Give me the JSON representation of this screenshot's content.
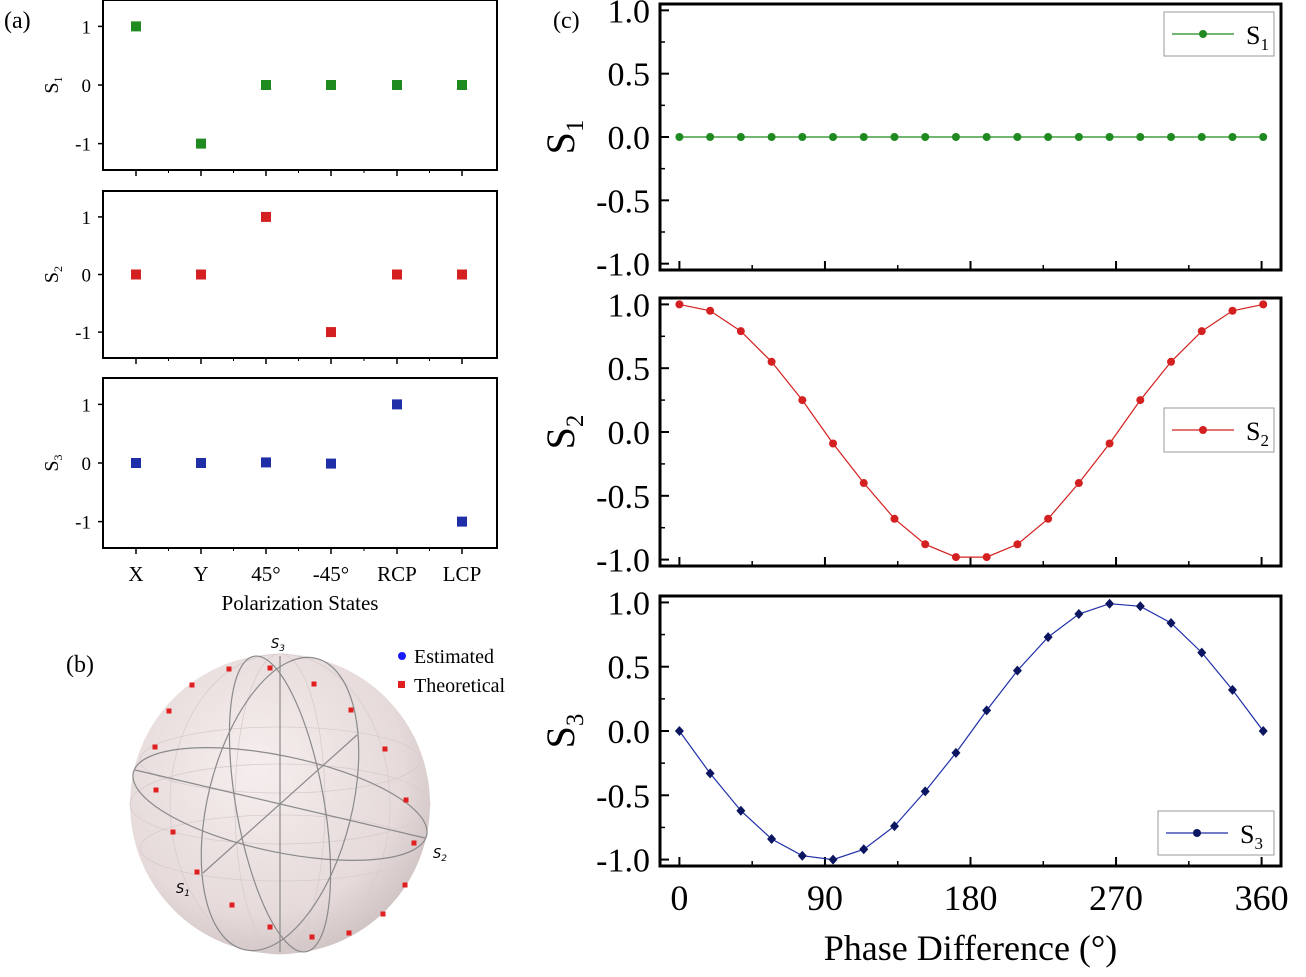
{
  "panel_labels": {
    "a": "(a)",
    "b": "(b)",
    "c": "(c)"
  },
  "colors": {
    "green": "#1f8a1f",
    "red": "#d42020",
    "blue": "#1f2fa8",
    "navy": "#0b1560"
  },
  "chart_data": [
    {
      "id": "a1",
      "type": "scatter",
      "categories": [
        "X",
        "Y",
        "45°",
        "-45°",
        "RCP",
        "LCP"
      ],
      "values": [
        1,
        -1,
        0,
        0,
        0,
        0
      ],
      "ylabel": "S",
      "ylabel_sub": "1",
      "ylim": [
        -1.45,
        1.45
      ],
      "yticks": [
        1,
        0,
        -1
      ],
      "ytick_labels": [
        "1",
        "0",
        "-1"
      ],
      "color": "#1f8a1f",
      "marker": "square"
    },
    {
      "id": "a2",
      "type": "scatter",
      "categories": [
        "X",
        "Y",
        "45°",
        "-45°",
        "RCP",
        "LCP"
      ],
      "values": [
        0,
        0,
        1,
        -1,
        0,
        0
      ],
      "ylabel": "S",
      "ylabel_sub": "2",
      "ylim": [
        -1.45,
        1.45
      ],
      "yticks": [
        1,
        0,
        -1
      ],
      "ytick_labels": [
        "1",
        "0",
        "-1"
      ],
      "color": "#d42020",
      "marker": "square"
    },
    {
      "id": "a3",
      "type": "scatter",
      "categories": [
        "X",
        "Y",
        "45°",
        "-45°",
        "RCP",
        "LCP"
      ],
      "values": [
        0,
        0,
        0.01,
        -0.01,
        1,
        -1
      ],
      "ylabel": "S",
      "ylabel_sub": "3",
      "xlabel": "Polarization States",
      "ylim": [
        -1.45,
        1.45
      ],
      "yticks": [
        1,
        0,
        -1
      ],
      "ytick_labels": [
        "1",
        "0",
        "-1"
      ],
      "color": "#1f2fa8",
      "marker": "square"
    },
    {
      "id": "c1",
      "type": "line",
      "x": [
        0,
        19,
        38,
        57,
        76,
        95,
        114,
        133,
        152,
        171,
        190,
        209,
        228,
        247,
        266,
        285,
        304,
        323,
        342,
        361
      ],
      "series": [
        {
          "name": "S",
          "name_sub": "1",
          "values": [
            0,
            0,
            0,
            0,
            0,
            0,
            0,
            0,
            0,
            0,
            0,
            0,
            0,
            0,
            0,
            0,
            0,
            0,
            0,
            0
          ]
        }
      ],
      "ylabel": "S",
      "ylabel_sub": "1",
      "xlim": [
        -12,
        372
      ],
      "ylim": [
        -1.05,
        1.05
      ],
      "yticks": [
        1.0,
        0.5,
        0.0,
        -0.5,
        -1.0
      ],
      "ytick_labels": [
        "1.0",
        "0.5",
        "0.0",
        "-0.5",
        "-1.0"
      ],
      "legend": "top-right",
      "color": "#1f8a1f",
      "marker": "circle"
    },
    {
      "id": "c2",
      "type": "line",
      "x": [
        0,
        19,
        38,
        57,
        76,
        95,
        114,
        133,
        152,
        171,
        190,
        209,
        228,
        247,
        266,
        285,
        304,
        323,
        342,
        361
      ],
      "series": [
        {
          "name": "S",
          "name_sub": "2",
          "values": [
            1.0,
            0.95,
            0.79,
            0.55,
            0.25,
            -0.09,
            -0.4,
            -0.68,
            -0.88,
            -0.98,
            -0.98,
            -0.88,
            -0.68,
            -0.4,
            -0.09,
            0.25,
            0.55,
            0.79,
            0.95,
            1.0
          ]
        }
      ],
      "ylabel": "S",
      "ylabel_sub": "2",
      "xlim": [
        -12,
        372
      ],
      "ylim": [
        -1.05,
        1.05
      ],
      "yticks": [
        1.0,
        0.5,
        0.0,
        -0.5,
        -1.0
      ],
      "ytick_labels": [
        "1.0",
        "0.5",
        "0.0",
        "-0.5",
        "-1.0"
      ],
      "legend": "right",
      "color": "#d42020",
      "marker": "circle"
    },
    {
      "id": "c3",
      "type": "line",
      "x": [
        0,
        19,
        38,
        57,
        76,
        95,
        114,
        133,
        152,
        171,
        190,
        209,
        228,
        247,
        266,
        285,
        304,
        323,
        342,
        361
      ],
      "series": [
        {
          "name": "S",
          "name_sub": "3",
          "values": [
            0.0,
            -0.33,
            -0.62,
            -0.84,
            -0.97,
            -1.0,
            -0.92,
            -0.74,
            -0.47,
            -0.17,
            0.16,
            0.47,
            0.73,
            0.91,
            0.99,
            0.97,
            0.84,
            0.61,
            0.32,
            0.0
          ]
        }
      ],
      "ylabel": "S",
      "ylabel_sub": "3",
      "xlabel": "Phase Difference (°)",
      "xlim": [
        -12,
        372
      ],
      "ylim": [
        -1.05,
        1.05
      ],
      "xticks": [
        0,
        90,
        180,
        270,
        360
      ],
      "xtick_labels": [
        "0",
        "90",
        "180",
        "270",
        "360"
      ],
      "yticks": [
        1.0,
        0.5,
        0.0,
        -0.5,
        -1.0
      ],
      "ytick_labels": [
        "1.0",
        "0.5",
        "0.0",
        "-0.5",
        "-1.0"
      ],
      "legend": "bottom-right",
      "color": "#1f2fa8",
      "marker": "diamond"
    }
  ],
  "sphere": {
    "axis_labels": {
      "s1": "S",
      "s1_sub": "1",
      "s2": "S",
      "s2_sub": "2",
      "s3": "S",
      "s3_sub": "3"
    },
    "legend": [
      {
        "label": "Estimated",
        "color": "#1a1aff",
        "marker": "circle"
      },
      {
        "label": "Theoretical",
        "color": "#e02020",
        "marker": "square"
      }
    ]
  }
}
